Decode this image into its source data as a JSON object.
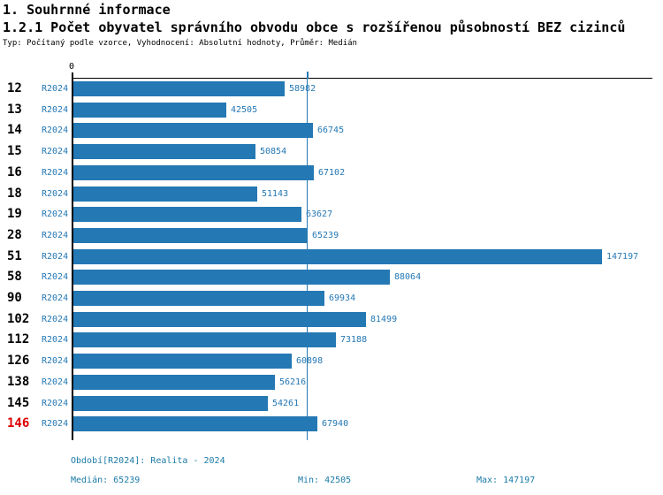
{
  "header": {
    "title1": "1. Souhrnné informace",
    "title2": "1.2.1 Počet obyvatel správního obvodu obce s rozšířenou působností BEZ cizinců",
    "subtitle": "Typ: Počítaný podle vzorce, Vyhodnocení: Absolutní hodnoty, Průměr: Medián"
  },
  "chart_data": {
    "type": "bar",
    "orientation": "horizontal",
    "title": "1.2.1 Počet obyvatel správního obvodu obce s rozšířenou působností BEZ cizinců",
    "categories": [
      "12",
      "13",
      "14",
      "15",
      "16",
      "18",
      "19",
      "28",
      "51",
      "58",
      "90",
      "102",
      "112",
      "126",
      "138",
      "145",
      "146"
    ],
    "series": [
      {
        "name": "R2024",
        "values": [
          58982,
          42505,
          66745,
          50854,
          67102,
          51143,
          63627,
          65239,
          147197,
          88064,
          69934,
          81499,
          73188,
          60898,
          56216,
          54261,
          67940
        ]
      }
    ],
    "value_labels_shown": true,
    "axis_zero_label": "0",
    "xlim": [
      0,
      160000
    ],
    "grid": "single median gridline",
    "median": 65239,
    "min": 42505,
    "max": 147197,
    "highlighted_category": "146"
  },
  "footer": {
    "period": "Období[R2024]: Realita - 2024",
    "median": "Medián: 65239",
    "min": "Min: 42505",
    "max": "Max: 147197"
  },
  "colors": {
    "bar": "#2478b4",
    "chart_text": "#2478b4",
    "median_line": "#2478b4",
    "footer_text": "#1b7ba6",
    "highlight_category": "#dd0000",
    "axis": "#000000"
  }
}
